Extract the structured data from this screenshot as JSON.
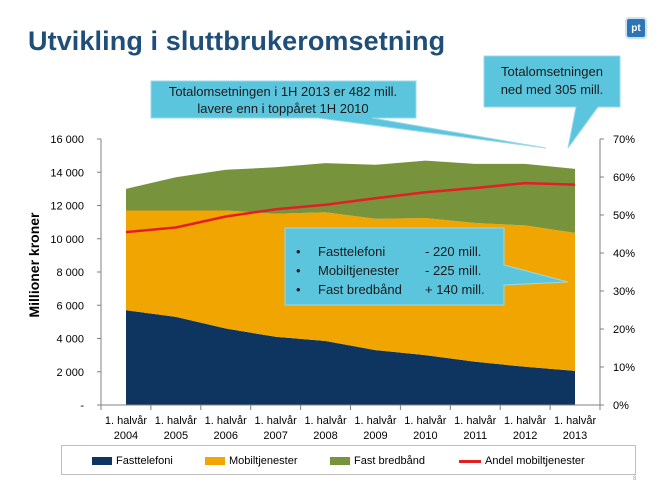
{
  "slide": {
    "title": "Utvikling i sluttbrukeromsetning",
    "logo_text": "pt",
    "page_number": "8"
  },
  "callouts": {
    "top_left": [
      "Totalomsetningen i 1H 2013 er 482 mill.",
      "lavere enn i toppåret 1H 2010"
    ],
    "top_right": [
      "Totalomsetningen",
      "ned med 305 mill."
    ],
    "middle": [
      {
        "bullet": "•",
        "label": "Fasttelefoni",
        "value": "- 220 mill."
      },
      {
        "bullet": "•",
        "label": "Mobiltjenester",
        "value": "- 225 mill."
      },
      {
        "bullet": "•",
        "label": "Fast bredbånd",
        "value": "+ 140 mill."
      }
    ]
  },
  "chart_data": {
    "type": "area",
    "stacked": true,
    "categories": [
      [
        "1. halvår",
        "2004"
      ],
      [
        "1. halvår",
        "2005"
      ],
      [
        "1. halvår",
        "2006"
      ],
      [
        "1. halvår",
        "2007"
      ],
      [
        "1. halvår",
        "2008"
      ],
      [
        "1. halvår",
        "2009"
      ],
      [
        "1. halvår",
        "2010"
      ],
      [
        "1. halvår",
        "2011"
      ],
      [
        "1. halvår",
        "2012"
      ],
      [
        "1. halvår",
        "2013"
      ]
    ],
    "ylabel": "Millioner kroner",
    "ylim": [
      0,
      16000
    ],
    "yticks": [
      "-",
      "2 000",
      "4 000",
      "6 000",
      "8 000",
      "10 000",
      "12 000",
      "14 000",
      "16 000"
    ],
    "y2lim": [
      0,
      70
    ],
    "y2ticks": [
      "0%",
      "10%",
      "20%",
      "30%",
      "40%",
      "50%",
      "60%",
      "70%"
    ],
    "series": [
      {
        "name": "Fasttelefoni",
        "color": "#0e3460",
        "values": [
          5700,
          5300,
          4600,
          4100,
          3850,
          3300,
          3000,
          2600,
          2300,
          2050
        ]
      },
      {
        "name": "Mobiltjenester",
        "color": "#f0a500",
        "values": [
          6000,
          6400,
          7100,
          7400,
          7750,
          7900,
          8250,
          8350,
          8500,
          8300
        ]
      },
      {
        "name": "Fast bredbånd",
        "color": "#77933c",
        "values": [
          1300,
          2000,
          2450,
          2800,
          2950,
          3250,
          3450,
          3550,
          3700,
          3850
        ]
      },
      {
        "name": "Andel mobiltjenester",
        "color": "#e41e26",
        "axis": "secondary",
        "type": "line",
        "values": [
          45.5,
          46.7,
          49.6,
          51.5,
          52.7,
          54.4,
          56.0,
          57.1,
          58.4,
          58.0
        ]
      }
    ],
    "grid": false,
    "legend": "bottom"
  }
}
